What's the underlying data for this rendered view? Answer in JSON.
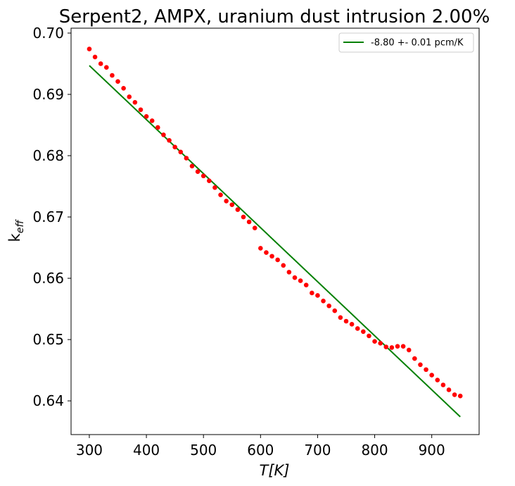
{
  "chart_data": {
    "type": "scatter",
    "title": "Serpent2, AMPX, uranium dust intrusion  2.00%",
    "xlabel": "T[K]",
    "ylabel": {
      "base": "k",
      "subscript": "eff"
    },
    "xlim": [
      268,
      983
    ],
    "ylim": [
      0.6345,
      0.7008
    ],
    "xticks": [
      300,
      400,
      500,
      600,
      700,
      800,
      900
    ],
    "yticks": [
      0.64,
      0.65,
      0.66,
      0.67,
      0.68,
      0.69,
      0.7
    ],
    "xtick_labels": [
      "300",
      "400",
      "500",
      "600",
      "700",
      "800",
      "900"
    ],
    "ytick_labels": [
      "0.64",
      "0.65",
      "0.66",
      "0.67",
      "0.68",
      "0.69",
      "0.70"
    ],
    "grid": false,
    "legend_position": "top-right",
    "series": [
      {
        "name": "",
        "kind": "scatter",
        "color": "#ff0000",
        "x": [
          300,
          310,
          320,
          330,
          340,
          350,
          360,
          370,
          380,
          390,
          400,
          410,
          420,
          430,
          440,
          450,
          460,
          470,
          480,
          490,
          500,
          510,
          520,
          530,
          540,
          550,
          560,
          570,
          580,
          590,
          600,
          610,
          620,
          630,
          640,
          650,
          660,
          670,
          680,
          690,
          700,
          710,
          720,
          730,
          740,
          750,
          760,
          770,
          780,
          790,
          800,
          810,
          820,
          830,
          840,
          850,
          860,
          870,
          880,
          890,
          900,
          910,
          920,
          930,
          940,
          950
        ],
        "y": [
          0.6974,
          0.6961,
          0.695,
          0.6944,
          0.6931,
          0.6921,
          0.691,
          0.6896,
          0.6887,
          0.6875,
          0.6864,
          0.6857,
          0.6846,
          0.6834,
          0.6825,
          0.6814,
          0.6806,
          0.6796,
          0.6783,
          0.6774,
          0.6767,
          0.6759,
          0.6748,
          0.6736,
          0.6726,
          0.672,
          0.6712,
          0.67,
          0.6692,
          0.6682,
          0.6649,
          0.6642,
          0.6636,
          0.663,
          0.6621,
          0.661,
          0.6601,
          0.6596,
          0.6589,
          0.6576,
          0.6572,
          0.6563,
          0.6555,
          0.6547,
          0.6536,
          0.653,
          0.6525,
          0.6518,
          0.6513,
          0.6506,
          0.6497,
          0.6494,
          0.6488,
          0.6487,
          0.6489,
          0.6489,
          0.6483,
          0.6469,
          0.6459,
          0.6451,
          0.6442,
          0.6434,
          0.6426,
          0.6418,
          0.641,
          0.6408
        ]
      },
      {
        "name": "-8.80 +- 0.01 pcm/K",
        "kind": "line",
        "color": "#008000",
        "x": [
          300,
          950
        ],
        "y": [
          0.6947,
          0.6374
        ]
      }
    ]
  }
}
